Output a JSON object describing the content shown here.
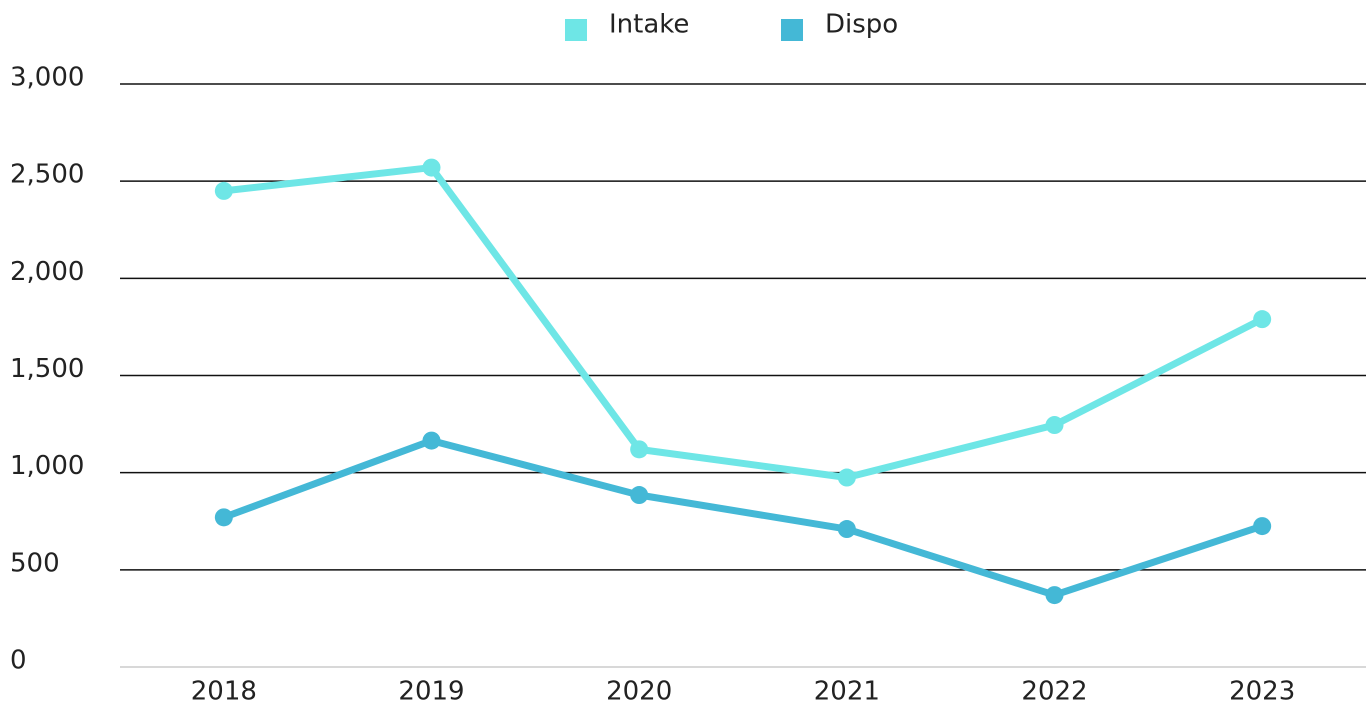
{
  "chart_data": {
    "type": "line",
    "categories": [
      "2018",
      "2019",
      "2020",
      "2021",
      "2022",
      "2023"
    ],
    "series": [
      {
        "name": "Intake",
        "color": "#6ee6e6",
        "values": [
          2450,
          2570,
          1120,
          975,
          1245,
          1790
        ]
      },
      {
        "name": "Dispo",
        "color": "#44b8d6",
        "values": [
          770,
          1165,
          885,
          710,
          370,
          725
        ]
      }
    ],
    "ylim": [
      0,
      3000
    ],
    "yticks": [
      0,
      500,
      {
        "value": 1000,
        "label": "1,000"
      },
      {
        "value": 1500,
        "label": "1,500"
      },
      {
        "value": 2000,
        "label": "2,000"
      },
      {
        "value": 2500,
        "label": "2,500"
      },
      {
        "value": 3000,
        "label": "3,000"
      }
    ],
    "grid": true,
    "legend": "top"
  }
}
